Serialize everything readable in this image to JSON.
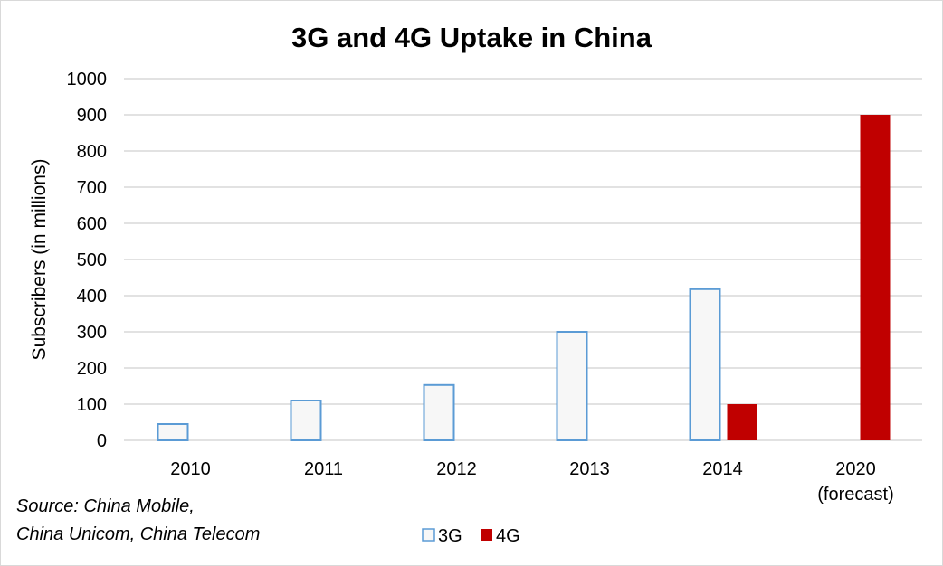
{
  "chart_data": {
    "type": "bar",
    "title": "3G and 4G Uptake in China",
    "xlabel": "",
    "ylabel": "Subscribers (in millions)",
    "ylim": [
      0,
      1000
    ],
    "yticks": [
      "0",
      "100",
      "200",
      "300",
      "400",
      "500",
      "600",
      "700",
      "800",
      "900",
      "1000"
    ],
    "grid": true,
    "categories": [
      "2010",
      "2011",
      "2012",
      "2013",
      "2014",
      "2020"
    ],
    "category_sublabels": [
      "",
      "",
      "",
      "",
      "",
      "(forecast)"
    ],
    "series": [
      {
        "name": "3G",
        "values": [
          45,
          110,
          153,
          300,
          418,
          null
        ],
        "color": "#5B9BD5",
        "fill": "#F7F7F7"
      },
      {
        "name": "4G",
        "values": [
          null,
          null,
          null,
          null,
          100,
          900
        ],
        "color": "#C00000",
        "fill": "#C00000"
      }
    ],
    "legend_position": "bottom",
    "annotations": [
      "Source: China Mobile,",
      "China Unicom, China Telecom"
    ]
  }
}
